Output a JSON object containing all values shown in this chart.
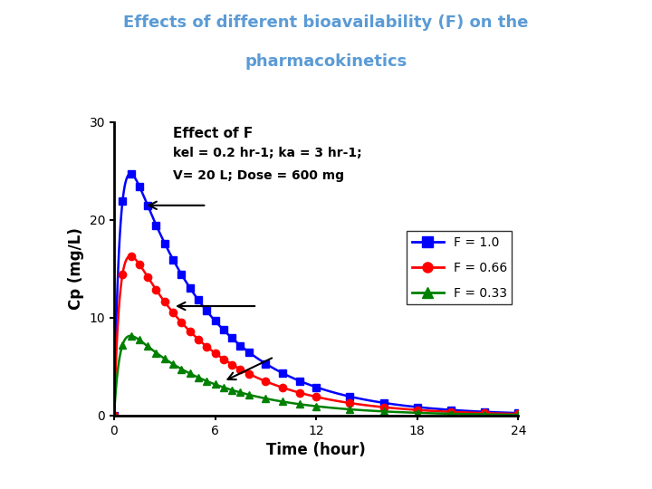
{
  "title_line1": "Effects of different bioavailability (F) on the",
  "title_line2": "pharmacokinetics",
  "title_color": "#5b9bd5",
  "xlabel": "Time (hour)",
  "ylabel": "Cp (mg/L)",
  "xlim": [
    0,
    24
  ],
  "ylim": [
    0,
    30
  ],
  "xticks": [
    0,
    6,
    12,
    18,
    24
  ],
  "yticks": [
    0,
    10,
    20,
    30
  ],
  "kel": 0.2,
  "ka": 3.0,
  "V": 20,
  "Dose": 600,
  "F_values": [
    1.0,
    0.66,
    0.33
  ],
  "colors": [
    "blue",
    "red",
    "green"
  ],
  "markers": [
    "s",
    "o",
    "^"
  ],
  "legend_labels": [
    "F = 1.0",
    "F = 0.66",
    "F = 0.33"
  ],
  "annotation_line1": "Effect of F",
  "annotation_line2": "kel = 0.2 hr-1; ka = 3 hr-1;",
  "annotation_line3": "V= 20 L; Dose = 600 mg",
  "background_color": "#ffffff"
}
